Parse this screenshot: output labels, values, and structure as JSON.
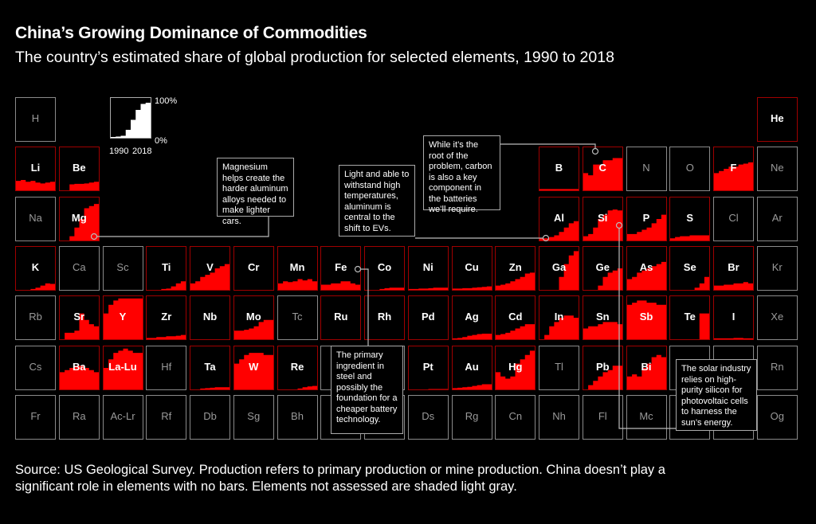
{
  "title": "China’s Growing Dominance of Commodities",
  "subtitle": "The country’s estimated share of global production for selected elements, 1990 to 2018",
  "legend": {
    "y_max": "100%",
    "y_min": "0%",
    "x_start": "1990",
    "x_end": "2018",
    "example_values": [
      2,
      3,
      5,
      20,
      45,
      70,
      85,
      88
    ]
  },
  "colors": {
    "background": "#000000",
    "bar": "#ff0000",
    "assessed_border": "#a00000",
    "not_assessed_border": "#8a8a8a"
  },
  "chart_data": {
    "type": "area",
    "subtype": "small-multiples periodic table",
    "x": [
      1990,
      1994,
      1998,
      2002,
      2006,
      2010,
      2014,
      2018
    ],
    "ylim": [
      0,
      100
    ],
    "yunit": "%",
    "elements": [
      {
        "symbol": "H",
        "assessed": false
      },
      {
        "symbol": "He",
        "assessed": true,
        "values": [
          0,
          0,
          0,
          0,
          0,
          0,
          0,
          0
        ]
      },
      {
        "symbol": "Li",
        "assessed": true,
        "values": [
          22,
          24,
          20,
          22,
          18,
          16,
          18,
          20
        ]
      },
      {
        "symbol": "Be",
        "assessed": true,
        "values": [
          0,
          0,
          14,
          15,
          15,
          16,
          18,
          20
        ]
      },
      {
        "symbol": "B",
        "assessed": true,
        "values": [
          3,
          3,
          3,
          3,
          3,
          3,
          3,
          3
        ]
      },
      {
        "symbol": "C",
        "assessed": true,
        "values": [
          40,
          35,
          60,
          60,
          70,
          70,
          75,
          75
        ]
      },
      {
        "symbol": "N",
        "assessed": false
      },
      {
        "symbol": "O",
        "assessed": false
      },
      {
        "symbol": "F",
        "assessed": true,
        "values": [
          40,
          45,
          50,
          55,
          55,
          60,
          62,
          65
        ]
      },
      {
        "symbol": "Ne",
        "assessed": false
      },
      {
        "symbol": "Na",
        "assessed": false
      },
      {
        "symbol": "Mg",
        "assessed": true,
        "values": [
          0,
          0,
          10,
          30,
          50,
          75,
          80,
          85
        ]
      },
      {
        "symbol": "Al",
        "assessed": true,
        "values": [
          5,
          5,
          8,
          12,
          20,
          30,
          40,
          45
        ]
      },
      {
        "symbol": "Si",
        "assessed": true,
        "values": [
          10,
          15,
          30,
          50,
          60,
          70,
          72,
          70
        ]
      },
      {
        "symbol": "P",
        "assessed": true,
        "values": [
          15,
          15,
          20,
          25,
          30,
          40,
          50,
          60
        ]
      },
      {
        "symbol": "S",
        "assessed": true,
        "values": [
          5,
          8,
          10,
          10,
          12,
          12,
          12,
          12
        ]
      },
      {
        "symbol": "Cl",
        "assessed": false
      },
      {
        "symbol": "Ar",
        "assessed": false
      },
      {
        "symbol": "K",
        "assessed": true,
        "values": [
          0,
          0,
          0,
          2,
          5,
          10,
          15,
          14
        ]
      },
      {
        "symbol": "Ca",
        "assessed": false
      },
      {
        "symbol": "Sc",
        "assessed": false
      },
      {
        "symbol": "Ti",
        "assessed": true,
        "values": [
          0,
          0,
          0,
          2,
          3,
          8,
          15,
          20
        ]
      },
      {
        "symbol": "V",
        "assessed": true,
        "values": [
          15,
          20,
          30,
          35,
          40,
          50,
          55,
          60
        ]
      },
      {
        "symbol": "Cr",
        "assessed": true,
        "values": [
          0,
          0,
          0,
          0,
          0,
          0,
          0,
          0
        ]
      },
      {
        "symbol": "Mn",
        "assessed": true,
        "values": [
          15,
          20,
          18,
          20,
          25,
          22,
          25,
          20
        ]
      },
      {
        "symbol": "Fe",
        "assessed": true,
        "values": [
          12,
          12,
          15,
          15,
          20,
          20,
          15,
          12
        ]
      },
      {
        "symbol": "Co",
        "assessed": true,
        "values": [
          0,
          0,
          0,
          2,
          4,
          5,
          5,
          5
        ]
      },
      {
        "symbol": "Ni",
        "assessed": true,
        "values": [
          2,
          2,
          3,
          3,
          4,
          5,
          5,
          5
        ]
      },
      {
        "symbol": "Cu",
        "assessed": true,
        "values": [
          3,
          3,
          4,
          4,
          5,
          6,
          7,
          8
        ]
      },
      {
        "symbol": "Zn",
        "assessed": true,
        "values": [
          10,
          12,
          15,
          20,
          25,
          30,
          38,
          40
        ]
      },
      {
        "symbol": "Ga",
        "assessed": true,
        "values": [
          0,
          0,
          0,
          0,
          30,
          60,
          80,
          90
        ]
      },
      {
        "symbol": "Ge",
        "assessed": true,
        "values": [
          0,
          0,
          0,
          10,
          30,
          40,
          45,
          50
        ]
      },
      {
        "symbol": "As",
        "assessed": true,
        "values": [
          25,
          30,
          40,
          45,
          50,
          55,
          60,
          65
        ]
      },
      {
        "symbol": "Se",
        "assessed": true,
        "values": [
          0,
          0,
          0,
          0,
          0,
          5,
          15,
          30
        ]
      },
      {
        "symbol": "Br",
        "assessed": true,
        "values": [
          10,
          10,
          12,
          12,
          15,
          15,
          18,
          15
        ]
      },
      {
        "symbol": "Kr",
        "assessed": false
      },
      {
        "symbol": "Rb",
        "assessed": false
      },
      {
        "symbol": "Sr",
        "assessed": true,
        "values": [
          0,
          15,
          15,
          20,
          60,
          45,
          35,
          30
        ]
      },
      {
        "symbol": "Y",
        "assessed": true,
        "values": [
          60,
          80,
          90,
          95,
          95,
          95,
          95,
          95
        ]
      },
      {
        "symbol": "Zr",
        "assessed": true,
        "values": [
          3,
          3,
          5,
          5,
          7,
          7,
          8,
          10
        ]
      },
      {
        "symbol": "Nb",
        "assessed": true,
        "values": [
          0,
          0,
          0,
          0,
          0,
          0,
          0,
          0
        ]
      },
      {
        "symbol": "Mo",
        "assessed": true,
        "values": [
          20,
          20,
          22,
          25,
          30,
          40,
          45,
          45
        ]
      },
      {
        "symbol": "Tc",
        "assessed": false
      },
      {
        "symbol": "Ru",
        "assessed": true,
        "values": [
          0,
          0,
          0,
          0,
          0,
          0,
          0,
          0
        ]
      },
      {
        "symbol": "Rh",
        "assessed": true,
        "values": [
          0,
          0,
          0,
          0,
          0,
          0,
          0,
          0
        ]
      },
      {
        "symbol": "Pd",
        "assessed": true,
        "values": [
          0,
          0,
          0,
          0,
          0,
          0,
          0,
          0
        ]
      },
      {
        "symbol": "Ag",
        "assessed": true,
        "values": [
          2,
          3,
          5,
          8,
          10,
          12,
          13,
          13
        ]
      },
      {
        "symbol": "Cd",
        "assessed": true,
        "values": [
          10,
          12,
          15,
          20,
          25,
          30,
          35,
          35
        ]
      },
      {
        "symbol": "In",
        "assessed": true,
        "values": [
          0,
          10,
          30,
          40,
          50,
          55,
          55,
          50
        ]
      },
      {
        "symbol": "Sn",
        "assessed": true,
        "values": [
          25,
          30,
          30,
          35,
          40,
          40,
          40,
          35
        ]
      },
      {
        "symbol": "Sb",
        "assessed": true,
        "values": [
          80,
          85,
          90,
          90,
          85,
          85,
          80,
          80
        ]
      },
      {
        "symbol": "Te",
        "assessed": true,
        "values": [
          0,
          0,
          0,
          0,
          0,
          0,
          60,
          60
        ]
      },
      {
        "symbol": "I",
        "assessed": true,
        "values": [
          2,
          2,
          2,
          2,
          3,
          3,
          2,
          2
        ]
      },
      {
        "symbol": "Xe",
        "assessed": false
      },
      {
        "symbol": "Cs",
        "assessed": false
      },
      {
        "symbol": "Ba",
        "assessed": true,
        "values": [
          40,
          45,
          50,
          55,
          55,
          50,
          45,
          40
        ]
      },
      {
        "symbol": "La-Lu",
        "assessed": true,
        "values": [
          50,
          70,
          85,
          90,
          95,
          90,
          85,
          85
        ]
      },
      {
        "symbol": "Hf",
        "assessed": false
      },
      {
        "symbol": "Ta",
        "assessed": true,
        "values": [
          0,
          0,
          2,
          3,
          4,
          5,
          5,
          5
        ]
      },
      {
        "symbol": "W",
        "assessed": true,
        "values": [
          60,
          70,
          80,
          85,
          85,
          85,
          80,
          80
        ]
      },
      {
        "symbol": "Re",
        "assessed": true,
        "values": [
          0,
          0,
          0,
          0,
          2,
          5,
          7,
          8
        ]
      },
      {
        "symbol": "Os",
        "assessed": false
      },
      {
        "symbol": "Ir",
        "assessed": false
      },
      {
        "symbol": "Pt",
        "assessed": true,
        "values": [
          0,
          0,
          0,
          0,
          1,
          1,
          1,
          1
        ]
      },
      {
        "symbol": "Au",
        "assessed": true,
        "values": [
          3,
          4,
          5,
          6,
          8,
          10,
          12,
          12
        ]
      },
      {
        "symbol": "Hg",
        "assessed": true,
        "values": [
          40,
          30,
          25,
          30,
          60,
          70,
          80,
          90
        ]
      },
      {
        "symbol": "Tl",
        "assessed": false
      },
      {
        "symbol": "Pb",
        "assessed": true,
        "values": [
          0,
          10,
          20,
          30,
          40,
          45,
          55,
          55
        ]
      },
      {
        "symbol": "Bi",
        "assessed": true,
        "values": [
          30,
          35,
          30,
          50,
          60,
          75,
          80,
          75
        ]
      },
      {
        "symbol": "Po",
        "assessed": false
      },
      {
        "symbol": "At",
        "assessed": false
      },
      {
        "symbol": "Rn",
        "assessed": false
      },
      {
        "symbol": "Fr",
        "assessed": false
      },
      {
        "symbol": "Ra",
        "assessed": false
      },
      {
        "symbol": "Ac-Lr",
        "assessed": false
      },
      {
        "symbol": "Rf",
        "assessed": false
      },
      {
        "symbol": "Db",
        "assessed": false
      },
      {
        "symbol": "Sg",
        "assessed": false
      },
      {
        "symbol": "Bh",
        "assessed": false
      },
      {
        "symbol": "Hs",
        "assessed": false
      },
      {
        "symbol": "Mt",
        "assessed": false
      },
      {
        "symbol": "Ds",
        "assessed": false
      },
      {
        "symbol": "Rg",
        "assessed": false
      },
      {
        "symbol": "Cn",
        "assessed": false
      },
      {
        "symbol": "Nh",
        "assessed": false
      },
      {
        "symbol": "Fl",
        "assessed": false
      },
      {
        "symbol": "Mc",
        "assessed": false
      },
      {
        "symbol": "Lv",
        "assessed": false
      },
      {
        "symbol": "Ts",
        "assessed": false
      },
      {
        "symbol": "Og",
        "assessed": false
      }
    ]
  },
  "annotations": {
    "magnesium": "Magnesium helps create the harder aluminum alloys needed to make lighter cars.",
    "aluminum": "Light and able to withstand high temperatures, aluminum is central to the shift to EVs.",
    "carbon": "While it’s the root of the problem, carbon is also a key component in the batteries we’ll require.",
    "iron": "The primary ingredient in steel and possibly the foundation for a cheaper battery technology.",
    "silicon": "The solar industry relies on high-purity silicon for photovoltaic cells to harness the sun’s energy."
  },
  "source": "Source: US Geological Survey. Production refers to primary production or mine production. China doesn’t play a significant role in elements with no bars. Elements not assessed are shaded light gray."
}
